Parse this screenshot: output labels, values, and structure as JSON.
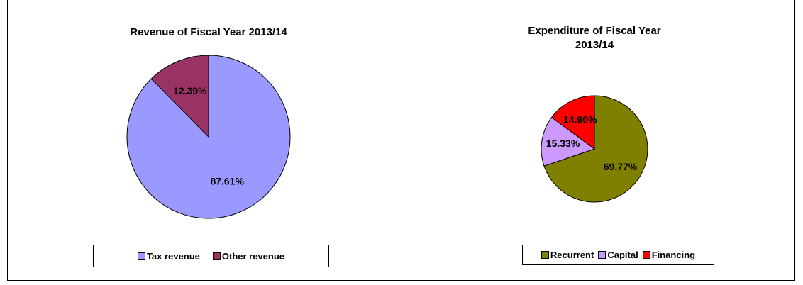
{
  "chart_data": [
    {
      "type": "pie",
      "title": "Revenue of Fiscal Year 2013/14",
      "categories": [
        "Tax revenue",
        "Other revenue"
      ],
      "values": [
        87.61,
        12.39
      ],
      "value_labels": [
        "87.61%",
        "12.39%"
      ],
      "colors": [
        "#9999ff",
        "#993366"
      ]
    },
    {
      "type": "pie",
      "title": "Expenditure of Fiscal Year 2013/14",
      "categories": [
        "Recurrent",
        "Capital",
        "Financing"
      ],
      "values": [
        69.77,
        15.33,
        14.9
      ],
      "value_labels": [
        "69.77%",
        "15.33%",
        "14.90%"
      ],
      "colors": [
        "#808000",
        "#cc99ff",
        "#ff0000"
      ]
    }
  ]
}
